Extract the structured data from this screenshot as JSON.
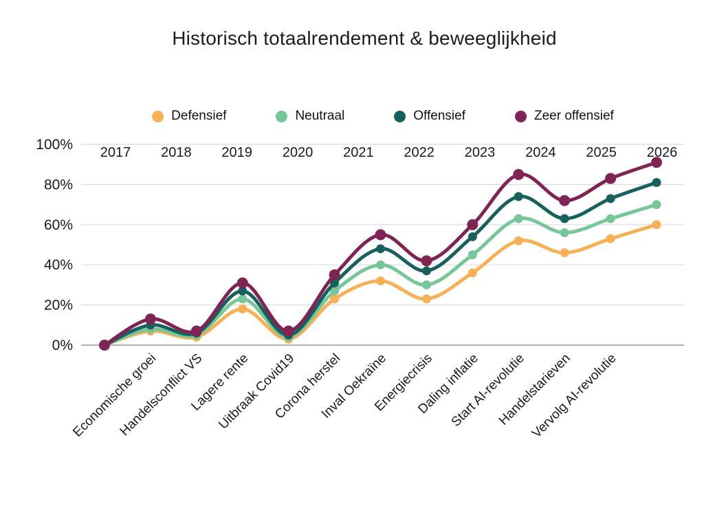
{
  "page": {
    "background": "#ffffff",
    "text_color": "#1a1a1a"
  },
  "chart_data": {
    "type": "line",
    "title": "Historisch totaalrendement & beweeglijkheid",
    "xlabel": "",
    "ylabel": "",
    "ylim": [
      0,
      100
    ],
    "grid": true,
    "legend_position": "top-center",
    "y_tick_values": [
      0,
      20,
      40,
      60,
      80,
      100
    ],
    "y_tick_labels": [
      "0%",
      "20%",
      "40%",
      "60%",
      "80%",
      "100%"
    ],
    "year_labels": [
      "2017",
      "2018",
      "2019",
      "2020",
      "2021",
      "2022",
      "2023",
      "2024",
      "2025",
      "2026"
    ],
    "x_event_labels": [
      "",
      "Economische groei",
      "Handelsconflict VS",
      "Lagere rente",
      "Uitbraak Covid19",
      "Corona herstel",
      "Inval Oekraïne",
      "Energiecrisis",
      "Daling inflatie",
      "Start AI-revolutie",
      "Handelstarieven",
      "Vervolg AI-revolutie",
      ""
    ],
    "series": [
      {
        "name": "Defensief",
        "color": "#F6B056",
        "values": [
          0,
          7,
          4,
          18,
          3,
          23,
          32,
          23,
          36,
          52,
          46,
          53,
          60
        ]
      },
      {
        "name": "Neutraal",
        "color": "#76C699",
        "values": [
          0,
          8,
          5,
          23,
          4,
          27,
          40,
          30,
          45,
          63,
          56,
          63,
          70
        ]
      },
      {
        "name": "Offensief",
        "color": "#17605E",
        "values": [
          0,
          10,
          6,
          27,
          5,
          31,
          48,
          37,
          54,
          74,
          63,
          73,
          81
        ]
      },
      {
        "name": "Zeer offensief",
        "color": "#802355",
        "values": [
          0,
          13,
          7,
          31,
          7,
          35,
          55,
          42,
          60,
          85,
          72,
          83,
          91
        ]
      }
    ],
    "colors": {
      "gridline": "#DCDCDC",
      "zero_line": "#9A9A9A",
      "title_text": "#1c1c1c"
    }
  }
}
